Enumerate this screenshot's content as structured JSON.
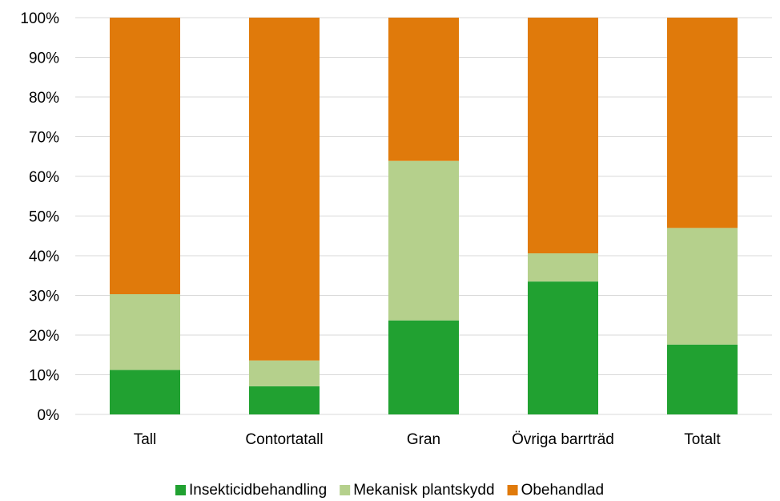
{
  "chart_data": {
    "type": "bar",
    "stacked": true,
    "percent": true,
    "categories": [
      "Tall",
      "Contortatall",
      "Gran",
      "Övriga barrträd",
      "Totalt"
    ],
    "series": [
      {
        "name": "Insekticidbehandling",
        "color": "#21a131",
        "values": [
          11.2,
          7.1,
          23.7,
          33.5,
          17.6
        ]
      },
      {
        "name": "Mekanisk plantskydd",
        "color": "#b5d08c",
        "values": [
          19.1,
          6.5,
          40.2,
          7.1,
          29.4
        ]
      },
      {
        "name": "Obehandlad",
        "color": "#e07a0b",
        "values": [
          69.7,
          86.4,
          36.1,
          59.4,
          53.0
        ]
      }
    ],
    "y_ticks": [
      "0%",
      "10%",
      "20%",
      "30%",
      "40%",
      "50%",
      "60%",
      "70%",
      "80%",
      "90%",
      "100%"
    ],
    "ylim": [
      0,
      100
    ],
    "grid": true,
    "gridline_color": "#d9d9d9",
    "legend_position": "bottom",
    "title": "",
    "xlabel": "",
    "ylabel": ""
  }
}
